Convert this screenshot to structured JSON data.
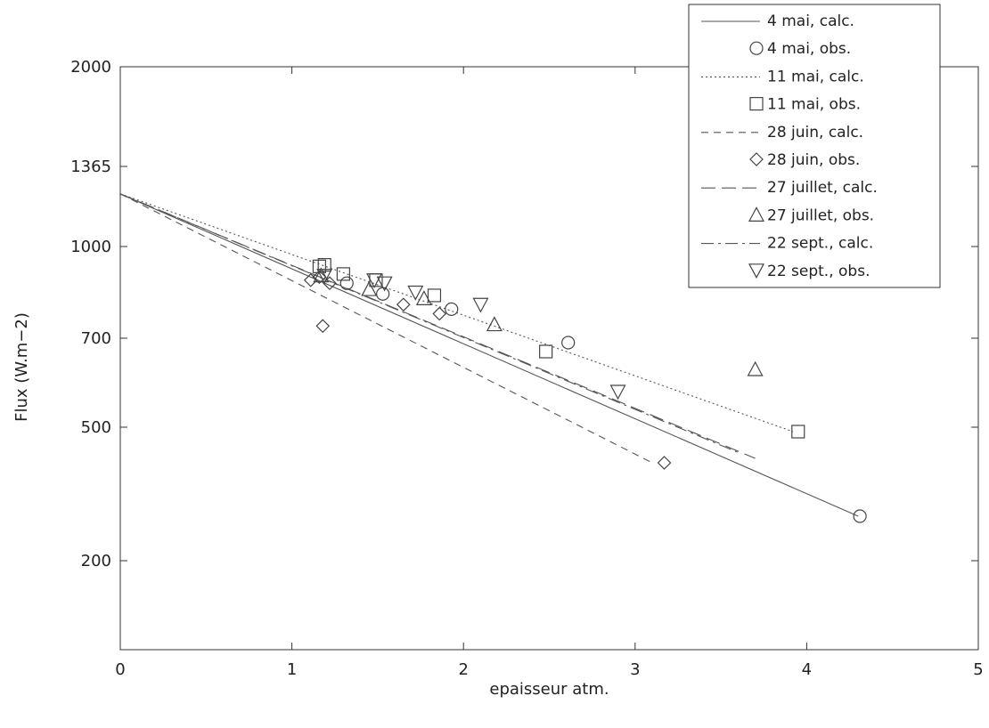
{
  "chart_data": {
    "type": "scatter",
    "title": "",
    "xlabel": "epaisseur atm.",
    "ylabel": "Flux (W.m−2)",
    "xlim": [
      0,
      5
    ],
    "ylim": [
      0,
      2000
    ],
    "x_ticks": [
      "0",
      "1",
      "2",
      "3",
      "4",
      "5"
    ],
    "y_ticks": [
      {
        "value": 200,
        "label": "200"
      },
      {
        "value": 500,
        "label": "500"
      },
      {
        "value": 700,
        "label": "700"
      },
      {
        "value": 1000,
        "label": "1000"
      },
      {
        "value": 1365,
        "label": "1365"
      },
      {
        "value": 2000,
        "label": "2000"
      }
    ],
    "grid": false,
    "legend_position": "top-right",
    "series": [
      {
        "name": "4 mai, calc.",
        "kind": "line",
        "dash": "solid",
        "x": [
          0,
          4.3
        ],
        "y": [
          1240,
          300
        ]
      },
      {
        "name": "4 mai, obs.",
        "kind": "points",
        "marker": "circle",
        "x": [
          1.32,
          1.53,
          1.93,
          2.61,
          4.31
        ],
        "y": [
          880,
          845,
          795,
          690,
          300
        ]
      },
      {
        "name": "11 mai, calc.",
        "kind": "line",
        "dash": "dotted",
        "x": [
          0,
          3.92
        ],
        "y": [
          1240,
          490
        ]
      },
      {
        "name": "11 mai, obs.",
        "kind": "points",
        "marker": "square",
        "x": [
          1.16,
          1.19,
          1.3,
          1.49,
          1.83,
          2.48,
          3.95
        ],
        "y": [
          935,
          940,
          910,
          890,
          840,
          670,
          490
        ]
      },
      {
        "name": "28 juin, calc.",
        "kind": "line",
        "dash": "dashed",
        "x": [
          0,
          3.1
        ],
        "y": [
          1240,
          420
        ]
      },
      {
        "name": "28 juin, obs.",
        "kind": "points",
        "marker": "diamond",
        "x": [
          1.11,
          1.16,
          1.18,
          1.22,
          1.65,
          1.86,
          3.17
        ],
        "y": [
          890,
          900,
          740,
          880,
          810,
          780,
          420
        ]
      },
      {
        "name": "27 juillet, calc.",
        "kind": "line",
        "dash": "longdash",
        "x": [
          0,
          3.7
        ],
        "y": [
          1240,
          430
        ]
      },
      {
        "name": "27 juillet, obs.",
        "kind": "points",
        "marker": "triangle-up",
        "x": [
          1.17,
          1.45,
          1.77,
          2.18,
          3.7
        ],
        "y": [
          905,
          860,
          830,
          745,
          630
        ]
      },
      {
        "name": "22 sept., calc.",
        "kind": "line",
        "dash": "dashdot",
        "x": [
          0,
          3.62
        ],
        "y": [
          1240,
          440
        ]
      },
      {
        "name": "22 sept., obs.",
        "kind": "points",
        "marker": "triangle-down",
        "x": [
          1.19,
          1.48,
          1.54,
          1.72,
          2.1,
          2.9
        ],
        "y": [
          905,
          890,
          880,
          850,
          810,
          580
        ]
      }
    ]
  }
}
